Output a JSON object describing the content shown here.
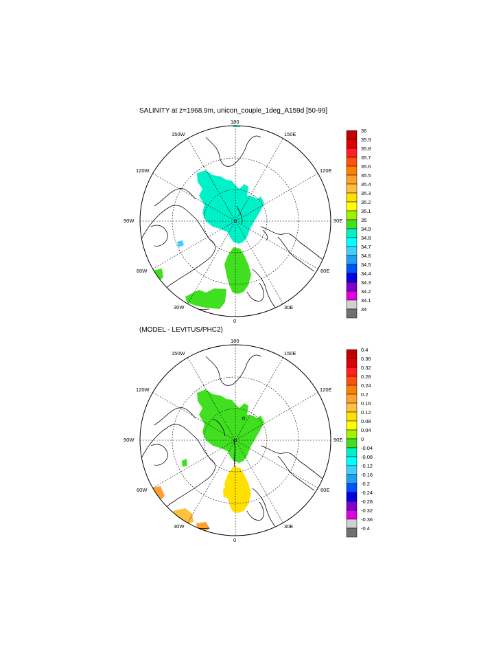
{
  "panel_top": {
    "title": "SALINITY at z=1968.9m, unicon_couple_1deg_A159d [50-99]",
    "lon_labels": [
      "180",
      "150W",
      "150E",
      "120W",
      "120E",
      "90W",
      "90E",
      "60W",
      "60E",
      "30W",
      "30E",
      "0"
    ],
    "colorbar": {
      "labels": [
        "36",
        "35.9",
        "35.8",
        "35.7",
        "35.6",
        "35.5",
        "35.4",
        "35.3",
        "35.2",
        "35.1",
        "35",
        "34.9",
        "34.8",
        "34.7",
        "34.6",
        "34.5",
        "34.4",
        "34.3",
        "34.2",
        "34.1",
        "34"
      ],
      "colors": [
        "#c00000",
        "#e00000",
        "#ff2020",
        "#ff5010",
        "#ff8000",
        "#ffa030",
        "#ffc040",
        "#ffe000",
        "#ffff00",
        "#a0f000",
        "#40e020",
        "#00f0c8",
        "#00ffff",
        "#40d0ff",
        "#20a0f0",
        "#0050ff",
        "#0000e0",
        "#8000d0",
        "#e000e0",
        "#d0d0d0",
        "#707070"
      ]
    }
  },
  "panel_bottom": {
    "title": "(MODEL - LEVITUS/PHC2)",
    "lon_labels": [
      "180",
      "150W",
      "150E",
      "120W",
      "120E",
      "90W",
      "90E",
      "60W",
      "60E",
      "30W",
      "30E",
      "0"
    ],
    "colorbar": {
      "labels": [
        "0.4",
        "0.36",
        "0.32",
        "0.28",
        "0.24",
        "0.2",
        "0.16",
        "0.12",
        "0.08",
        "0.04",
        "0",
        "-0.04",
        "-0.08",
        "-0.12",
        "-0.16",
        "-0.2",
        "-0.24",
        "-0.28",
        "-0.32",
        "-0.36",
        "-0.4"
      ],
      "colors": [
        "#c00000",
        "#e00000",
        "#ff2020",
        "#ff5010",
        "#ff8000",
        "#ffa030",
        "#ffc040",
        "#ffe000",
        "#ffff00",
        "#a0f000",
        "#40e020",
        "#00f0c8",
        "#00ffff",
        "#40d0ff",
        "#20a0f0",
        "#0050ff",
        "#0000e0",
        "#8000d0",
        "#e000e0",
        "#d0d0d0",
        "#707070"
      ]
    }
  }
}
